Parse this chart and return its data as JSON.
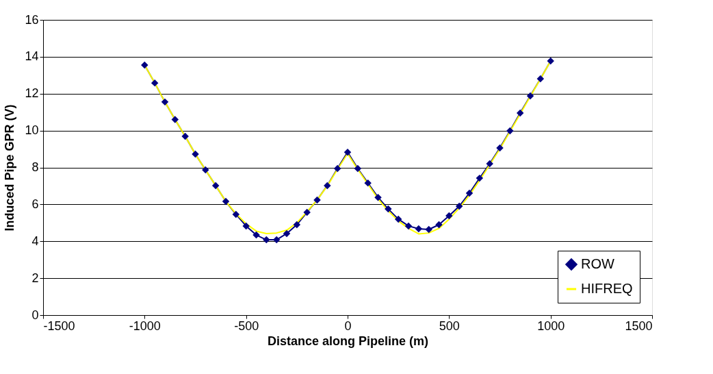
{
  "chart_data": {
    "type": "line",
    "xlabel": "Distance along Pipeline (m)",
    "ylabel": "Induced Pipe GPR (V)",
    "x": [
      -1000,
      -950,
      -900,
      -850,
      -800,
      -750,
      -700,
      -650,
      -600,
      -550,
      -500,
      -450,
      -400,
      -350,
      -300,
      -250,
      -200,
      -150,
      -100,
      -50,
      0,
      50,
      100,
      150,
      200,
      250,
      300,
      350,
      400,
      450,
      500,
      550,
      600,
      650,
      700,
      750,
      800,
      850,
      900,
      950,
      1000
    ],
    "series": [
      {
        "name": "ROW",
        "color": "#000080",
        "marker": "diamond",
        "values": [
          13.55,
          12.58,
          11.55,
          10.6,
          9.69,
          8.72,
          7.87,
          7.02,
          6.16,
          5.46,
          4.83,
          4.34,
          4.08,
          4.08,
          4.42,
          4.9,
          5.57,
          6.24,
          7.02,
          7.94,
          8.83,
          7.94,
          7.16,
          6.38,
          5.75,
          5.2,
          4.83,
          4.68,
          4.64,
          4.9,
          5.38,
          5.9,
          6.61,
          7.42,
          8.2,
          9.06,
          9.99,
          10.95,
          11.88,
          12.81,
          13.77
        ]
      },
      {
        "name": "HIFREQ",
        "color": "#ffff00",
        "marker": "none",
        "values": [
          13.55,
          12.58,
          11.55,
          10.6,
          9.69,
          8.72,
          7.87,
          7.02,
          6.16,
          5.5,
          4.95,
          4.55,
          4.42,
          4.45,
          4.6,
          5.0,
          5.6,
          6.24,
          7.0,
          7.9,
          8.75,
          7.9,
          7.1,
          6.3,
          5.65,
          5.1,
          4.7,
          4.4,
          4.45,
          4.7,
          5.2,
          5.8,
          6.5,
          7.3,
          8.15,
          9.0,
          9.95,
          10.9,
          11.85,
          12.8,
          13.77
        ]
      }
    ],
    "xlim": [
      -1500,
      1500
    ],
    "xticks": [
      -1500,
      -1000,
      -500,
      0,
      500,
      1000,
      1500
    ],
    "ylim": [
      0,
      16
    ],
    "yticks": [
      0,
      2,
      4,
      6,
      8,
      10,
      12,
      14,
      16
    ],
    "grid": "y",
    "legend": "bottom right"
  }
}
